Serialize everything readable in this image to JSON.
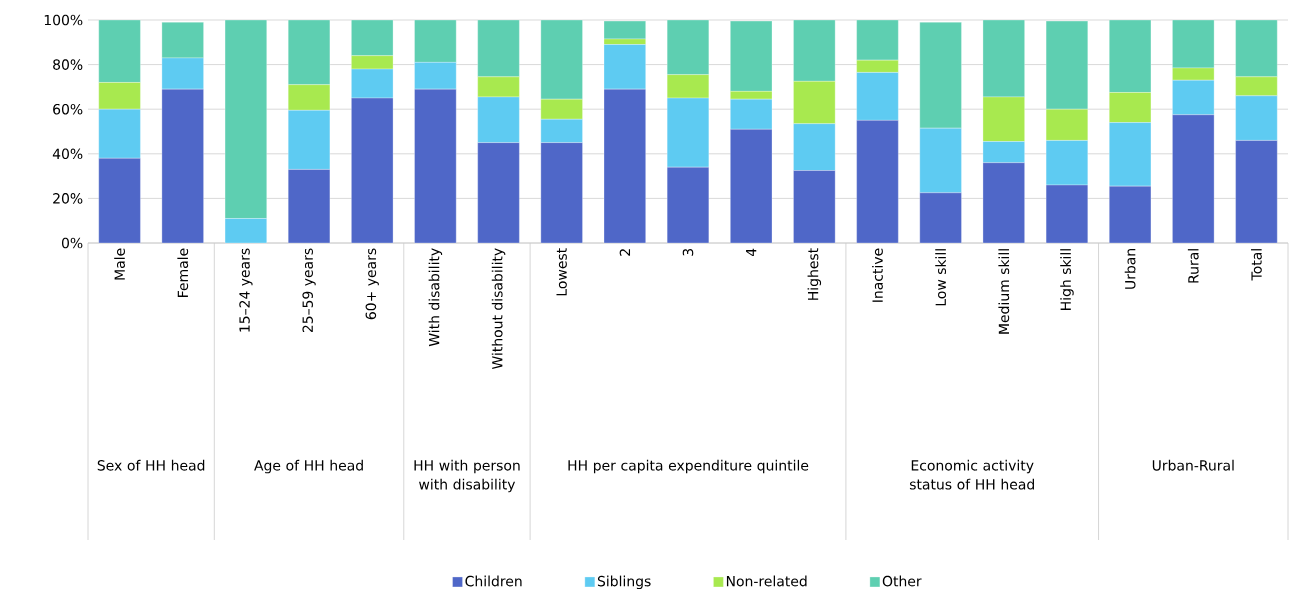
{
  "chart_data": {
    "type": "bar",
    "stacked": true,
    "categories": [
      "Male",
      "Female",
      "15–24 years",
      "25–59 years",
      "60+ years",
      "With disability",
      "Without disability",
      "Lowest",
      "2",
      "3",
      "4",
      "Highest",
      "Inactive",
      "Low skill",
      "Medium skill",
      "High skill",
      "Urban",
      "Rural",
      "Total"
    ],
    "series": [
      {
        "name": "Children",
        "color": "#4f67c8",
        "values": [
          38,
          69,
          0,
          33,
          65,
          69,
          45,
          45,
          69,
          34,
          51,
          32.5,
          55,
          22.5,
          36,
          26,
          25.5,
          57.5,
          46
        ]
      },
      {
        "name": "Siblings",
        "color": "#5ecbf2",
        "values": [
          22,
          14,
          11,
          26.5,
          13,
          12,
          20.5,
          10.5,
          20,
          31,
          13.5,
          21,
          21.5,
          29,
          9.5,
          20,
          28.5,
          15.5,
          20
        ]
      },
      {
        "name": "Non-related",
        "color": "#a8e94f",
        "values": [
          12,
          0,
          0,
          11.5,
          6,
          0,
          9,
          9,
          2.5,
          10.5,
          3.5,
          19,
          5.5,
          0,
          20,
          14,
          13.5,
          5.5,
          8.5
        ]
      },
      {
        "name": "Other",
        "color": "#5ecfb1",
        "values": [
          28,
          16,
          89,
          29,
          16,
          19,
          25.5,
          35.5,
          8,
          24.5,
          31.5,
          27.5,
          18,
          47.5,
          34.5,
          39.5,
          32.5,
          21.5,
          25.5
        ]
      }
    ],
    "ylim": [
      0,
      100
    ],
    "yticks": [
      {
        "value": 0,
        "label": "0%"
      },
      {
        "value": 20,
        "label": "20%"
      },
      {
        "value": 40,
        "label": "40%"
      },
      {
        "value": 60,
        "label": "60%"
      },
      {
        "value": 80,
        "label": "80%"
      },
      {
        "value": 100,
        "label": "100%"
      }
    ],
    "grid": "y",
    "legend": "bottom",
    "annotations": [
      "Sex of HH head",
      "Age of HH head",
      "HH with person with disability",
      "HH per capita expenditure quintile",
      "Economic activity status of HH head",
      "Urban-Rural"
    ]
  }
}
